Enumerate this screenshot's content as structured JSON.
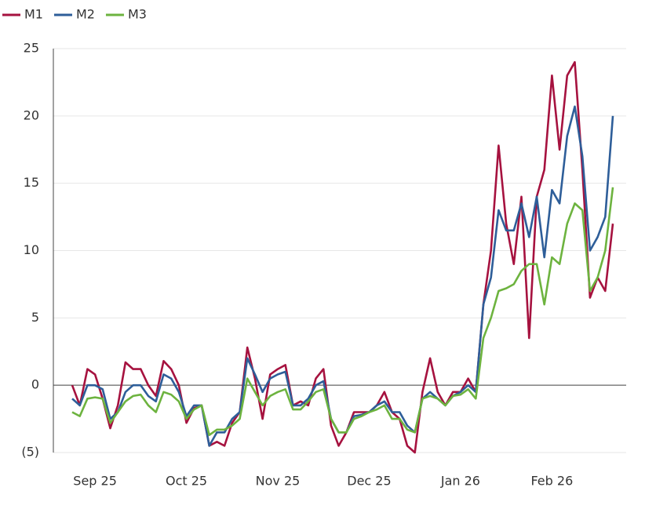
{
  "chart_data": {
    "type": "line",
    "categories": [
      null,
      null,
      null,
      "Sep 25",
      null,
      null,
      null,
      null,
      null,
      null,
      null,
      null,
      null,
      null,
      null,
      "Oct 25",
      null,
      null,
      null,
      null,
      null,
      null,
      null,
      null,
      null,
      null,
      null,
      "Nov 25",
      null,
      null,
      null,
      null,
      null,
      null,
      null,
      null,
      null,
      null,
      null,
      "Dec 25",
      null,
      null,
      null,
      null,
      null,
      null,
      null,
      null,
      null,
      null,
      null,
      "Jan 26",
      null,
      null,
      null,
      null,
      null,
      null,
      null,
      null,
      null,
      null,
      null,
      "Feb 26",
      null,
      null,
      null,
      null,
      null,
      null,
      null,
      null
    ],
    "series": [
      {
        "name": "M1",
        "color": "#a6123f",
        "values": [
          0,
          -1.5,
          1.2,
          0.8,
          -1,
          -3.2,
          -1.5,
          1.7,
          1.2,
          1.2,
          0,
          -0.8,
          1.8,
          1.2,
          0,
          -2.8,
          -1.7,
          -1.5,
          -4.5,
          -4.2,
          -4.5,
          -2.8,
          -2,
          2.8,
          0.5,
          -2.5,
          0.8,
          1.2,
          1.5,
          -1.5,
          -1.2,
          -1.5,
          0.5,
          1.2,
          -3,
          -4.5,
          -3.5,
          -2,
          -2,
          -2,
          -1.5,
          -0.5,
          -2,
          -2.5,
          -4.5,
          -5,
          -0.5,
          2,
          -0.5,
          -1.5,
          -0.5,
          -0.5,
          0.5,
          -0.5,
          6,
          10,
          17.8,
          12,
          9,
          14,
          3.5,
          14,
          16,
          23,
          17.5,
          23,
          24,
          16,
          6.5,
          8,
          7,
          12
        ]
      },
      {
        "name": "M2",
        "color": "#2e5e99",
        "values": [
          -1,
          -1.5,
          0,
          0,
          -0.3,
          -2.5,
          -2,
          -0.5,
          0,
          0,
          -0.8,
          -1.2,
          0.8,
          0.5,
          -0.5,
          -2.3,
          -1.5,
          -1.5,
          -4.5,
          -3.5,
          -3.5,
          -2.5,
          -2,
          2,
          0.8,
          -0.5,
          0.5,
          0.8,
          1,
          -1.5,
          -1.5,
          -1,
          0,
          0.3,
          -2.5,
          -3.5,
          -3.5,
          -2.3,
          -2.2,
          -2,
          -1.5,
          -1.2,
          -2,
          -2,
          -3,
          -3.5,
          -1,
          -0.5,
          -1,
          -1.5,
          -0.8,
          -0.5,
          0,
          -0.5,
          6,
          8,
          13,
          11.5,
          11.5,
          13.5,
          11,
          14,
          9.5,
          14.5,
          13.5,
          18.5,
          20.7,
          17,
          10,
          11,
          12.5,
          20
        ]
      },
      {
        "name": "M3",
        "color": "#6db33f",
        "values": [
          -2,
          -2.3,
          -1,
          -0.9,
          -1,
          -2.8,
          -2,
          -1.2,
          -0.8,
          -0.7,
          -1.5,
          -2,
          -0.5,
          -0.7,
          -1.2,
          -2.5,
          -1.8,
          -1.5,
          -3.7,
          -3.3,
          -3.3,
          -3,
          -2.5,
          0.5,
          -0.5,
          -1.5,
          -0.8,
          -0.5,
          -0.3,
          -1.8,
          -1.8,
          -1.2,
          -0.5,
          -0.3,
          -2.5,
          -3.5,
          -3.5,
          -2.5,
          -2.3,
          -2,
          -1.8,
          -1.5,
          -2.5,
          -2.5,
          -3.3,
          -3.5,
          -1,
          -0.8,
          -1,
          -1.5,
          -0.8,
          -0.7,
          -0.3,
          -1,
          3.5,
          5,
          7,
          7.2,
          7.5,
          8.5,
          9,
          9,
          6,
          9.5,
          9,
          12,
          13.5,
          13,
          7,
          8,
          10,
          14.7
        ]
      }
    ],
    "ylim": [
      -5,
      25
    ],
    "yticks": [
      {
        "value": -5,
        "label": "(5)"
      },
      0,
      5,
      10,
      15,
      20,
      25
    ],
    "grid": true
  }
}
